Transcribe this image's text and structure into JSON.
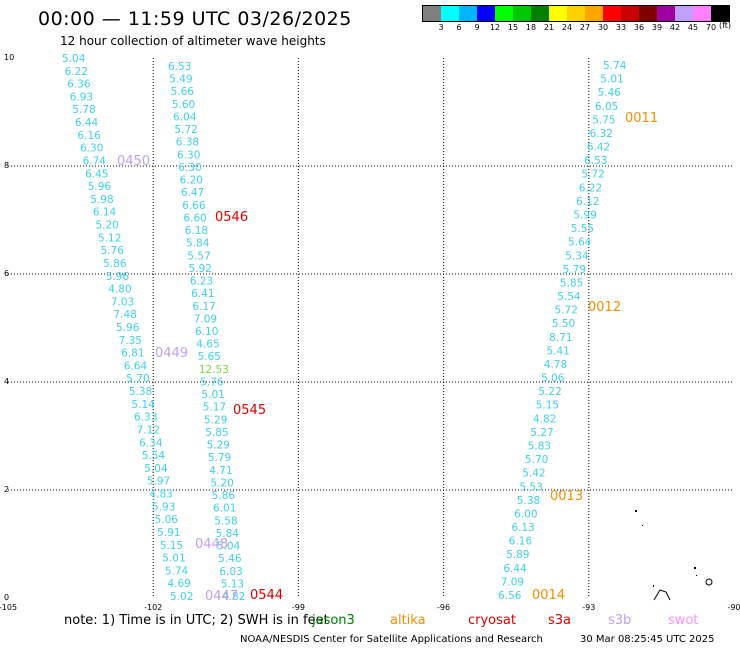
{
  "header": {
    "title": "00:00 — 11:59 UTC 03/26/2025",
    "subtitle": "12 hour collection of altimeter wave heights"
  },
  "colorbar": {
    "colors": [
      "#808080",
      "#00ffff",
      "#00b4ff",
      "#0000ff",
      "#00ff00",
      "#00c800",
      "#008000",
      "#ffff00",
      "#ffd000",
      "#ffa500",
      "#ff0000",
      "#c80000",
      "#800000",
      "#a000a0",
      "#c0a0ff",
      "#ff80ff",
      "#000000"
    ],
    "labels": [
      "3",
      "6",
      "9",
      "12",
      "15",
      "18",
      "21",
      "24",
      "27",
      "30",
      "33",
      "36",
      "39",
      "42",
      "45",
      "70"
    ],
    "unit": "(ft)"
  },
  "map": {
    "x_axis_labels": [
      "-105",
      "-102",
      "-99",
      "-96",
      "-93",
      "-90"
    ],
    "y_axis_labels": [
      "0",
      "2",
      "4",
      "6",
      "8",
      "10"
    ]
  },
  "tracks": [
    {
      "color": "#40d0e8",
      "values": [
        "5.04",
        "6.22",
        "6.36",
        "6.93",
        "5.78",
        "6.44",
        "6.16",
        "6.30",
        "6.74",
        "6.45",
        "5.96",
        "5.98",
        "6.14",
        "5.20",
        "5.12",
        "5.76",
        "5.86",
        "5.96",
        "4.80",
        "7.03",
        "7.48",
        "5.96",
        "7.35",
        "6.81",
        "6.64",
        "5.70",
        "5.38",
        "5.14",
        "6.33",
        "7.12",
        "6.34",
        "5.54",
        "5.04",
        "5.97",
        "4.83",
        "5.93",
        "5.06",
        "5.91",
        "5.15",
        "5.01",
        "5.74",
        "4.69",
        "5.02"
      ]
    },
    {
      "color": "#40d0e8",
      "values": [
        "6.53",
        "5.49",
        "5.66",
        "5.60",
        "6.04",
        "5.72",
        "6.38",
        "6.30",
        "6.30",
        "6.20",
        "6.47",
        "6.66",
        "6.60",
        "6.18",
        "5.84",
        "5.57",
        "5.92",
        "6.23",
        "6.41",
        "6.17",
        "7.09",
        "6.10",
        "4.65",
        "5.65",
        "12.53",
        "5.76",
        "5.01",
        "5.17",
        "5.29",
        "5.85",
        "5.29",
        "5.79",
        "4.71",
        "5.20",
        "5.86",
        "6.01",
        "5.58",
        "5.84",
        "5.04",
        "5.46",
        "6.03",
        "5.13",
        "4.82"
      ]
    },
    {
      "color": "#40d0e8",
      "values": [
        "5.74",
        "5.01",
        "5.46",
        "6.05",
        "5.75",
        "6.32",
        "6.42",
        "6.53",
        "5.72",
        "6.22",
        "6.12",
        "5.99",
        "5.55",
        "5.64",
        "5.34",
        "5.79",
        "5.85",
        "5.54",
        "5.72",
        "5.50",
        "8.71",
        "5.41",
        "4.78",
        "5.06",
        "5.22",
        "5.15",
        "4.82",
        "5.27",
        "5.83",
        "5.70",
        "5.42",
        "5.53",
        "5.38",
        "6.00",
        "6.13",
        "6.16",
        "5.89",
        "6.44",
        "7.09",
        "6.56"
      ]
    }
  ],
  "pass_labels": [
    {
      "text": "0450",
      "color": "#c0a0f0"
    },
    {
      "text": "0546",
      "color": "#e00000"
    },
    {
      "text": "0449",
      "color": "#c0a0f0"
    },
    {
      "text": "0545",
      "color": "#e00000"
    },
    {
      "text": "0448",
      "color": "#c0a0f0"
    },
    {
      "text": "0447",
      "color": "#c0a0f0"
    },
    {
      "text": "0544",
      "color": "#e00000"
    },
    {
      "text": "0011",
      "color": "#f09000"
    },
    {
      "text": "0012",
      "color": "#f09000"
    },
    {
      "text": "0013",
      "color": "#f09000"
    },
    {
      "text": "0014",
      "color": "#f09000"
    }
  ],
  "footer": {
    "note": "note:  1) Time is in UTC; 2) SWH is in feet",
    "satellites": [
      {
        "name": "jason3",
        "color": "#008000"
      },
      {
        "name": "altika",
        "color": "#f09000"
      },
      {
        "name": "cryosat",
        "color": "#e00000"
      },
      {
        "name": "s3a",
        "color": "#e00000"
      },
      {
        "name": "s3b",
        "color": "#c0a0f0"
      },
      {
        "name": "swot",
        "color": "#ff90ff"
      }
    ],
    "credit": "NOAA/NESDIS Center for Satellite Applications and Research",
    "timestamp": "30 Mar 08:25:45 UTC 2025"
  }
}
